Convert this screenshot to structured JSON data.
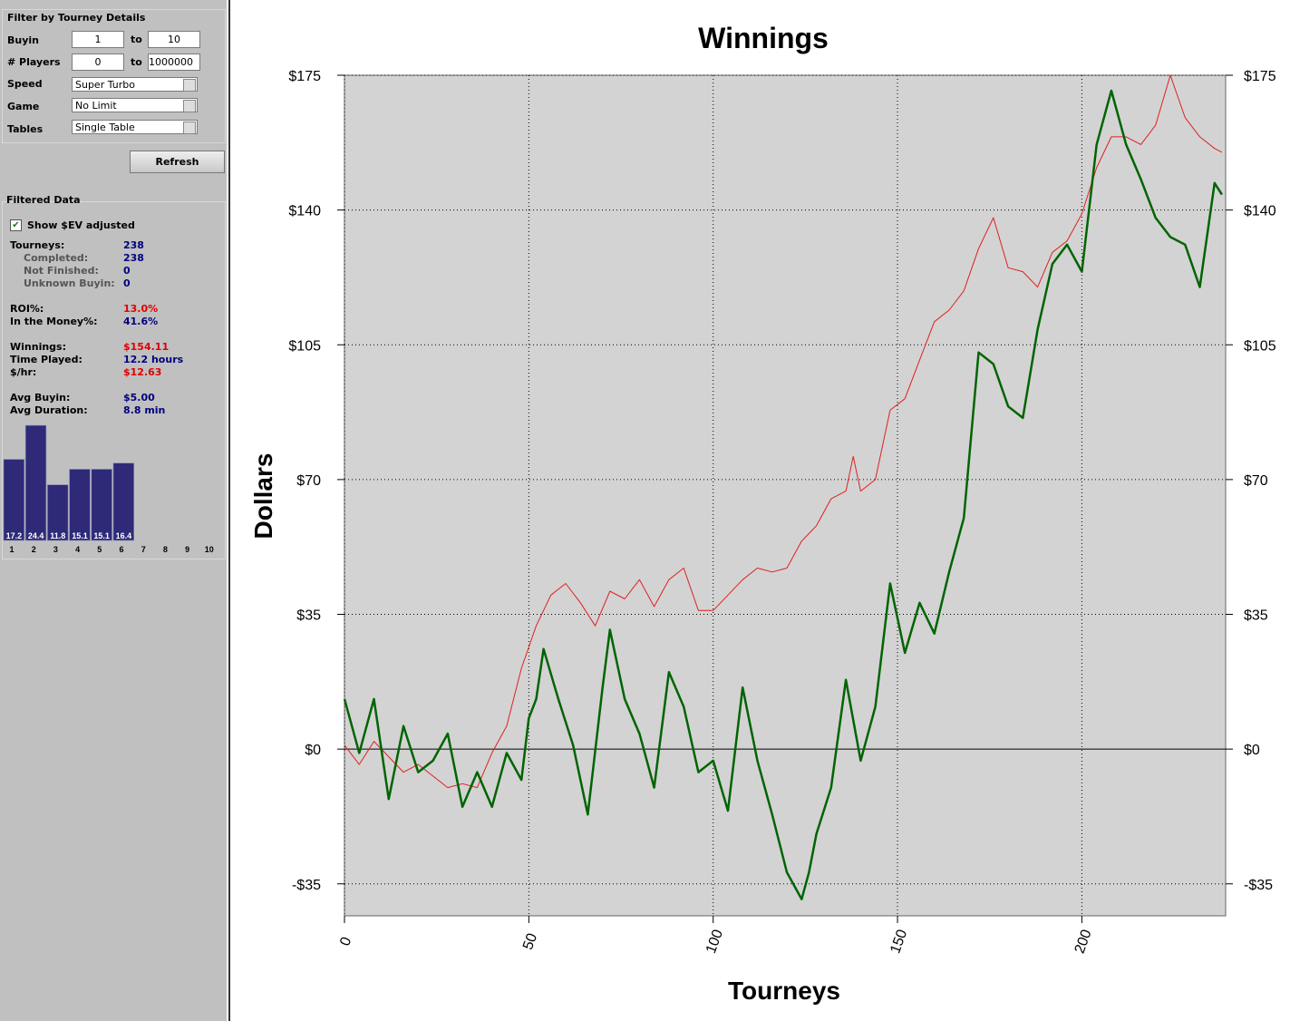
{
  "filter": {
    "title": "Filter by Tourney Details",
    "buyin": {
      "label": "Buyin",
      "min": "1",
      "sep": "to",
      "max": "10"
    },
    "players": {
      "label": "# Players",
      "min": "0",
      "sep": "to",
      "max": "1000000"
    },
    "speed": {
      "label": "Speed",
      "value": "Super Turbo"
    },
    "game": {
      "label": "Game",
      "value": "No Limit"
    },
    "tables": {
      "label": "Tables",
      "value": "Single Table"
    },
    "refresh": "Refresh"
  },
  "filtered": {
    "title": "Filtered Data",
    "ev_checkbox": "Show $EV adjusted",
    "ev_checked": true,
    "groups": [
      [
        {
          "label": "Tourneys:",
          "value": "238"
        },
        {
          "label": "Completed:",
          "value": "238",
          "sub": true
        },
        {
          "label": "Not Finished:",
          "value": "0",
          "sub": true
        },
        {
          "label": "Unknown Buyin:",
          "value": "0",
          "sub": true
        }
      ],
      [
        {
          "label": "ROI%:",
          "value": "13.0%",
          "color": "#e00000"
        },
        {
          "label": "In the Money%:",
          "value": "41.6%"
        }
      ],
      [
        {
          "label": "Winnings:",
          "value": "$154.11",
          "color": "#e00000"
        },
        {
          "label": "Time Played:",
          "value": "12.2 hours"
        },
        {
          "label": "$/hr:",
          "value": "$12.63",
          "color": "#e00000"
        }
      ],
      [
        {
          "label": "Avg Buyin:",
          "value": "$5.00"
        },
        {
          "label": "Avg Duration:",
          "value": "8.8 min"
        }
      ]
    ]
  },
  "histogram": {
    "type": "bar",
    "categories": [
      "1",
      "2",
      "3",
      "4",
      "5",
      "6",
      "7",
      "8",
      "9",
      "10"
    ],
    "values": [
      17.2,
      24.4,
      11.8,
      15.1,
      15.1,
      16.4,
      null,
      null,
      null,
      null
    ],
    "color": "#2e2a78"
  },
  "chart_data": {
    "type": "line",
    "title": "Winnings",
    "x_label": "Tourneys",
    "y_label": "Dollars",
    "xlim": [
      0,
      239
    ],
    "ylim": [
      -43.3,
      175
    ],
    "xticks": [
      0,
      50,
      100,
      150,
      200
    ],
    "yticks": [
      {
        "value": -35,
        "label": "-$35"
      },
      {
        "value": 0,
        "label": "$0"
      },
      {
        "value": 35,
        "label": "$35"
      },
      {
        "value": 70,
        "label": "$70"
      },
      {
        "value": 105,
        "label": "$105"
      },
      {
        "value": 140,
        "label": "$140"
      },
      {
        "value": 175,
        "label": "$175"
      }
    ],
    "grid": true,
    "mirror_y_axis": true,
    "series": [
      {
        "color": "#e02020",
        "width": 1,
        "x": [
          0,
          4,
          8,
          12,
          16,
          20,
          24,
          28,
          32,
          36,
          40,
          44,
          48,
          52,
          56,
          60,
          64,
          68,
          72,
          76,
          80,
          84,
          88,
          92,
          96,
          100,
          104,
          108,
          112,
          116,
          120,
          124,
          128,
          132,
          136,
          138,
          140,
          144,
          148,
          152,
          156,
          160,
          164,
          168,
          172,
          176,
          180,
          184,
          188,
          192,
          196,
          200,
          204,
          208,
          212,
          216,
          220,
          224,
          228,
          232,
          236,
          238
        ],
        "values": [
          1,
          -4,
          2,
          -2,
          -6,
          -4,
          -7,
          -10,
          -9,
          -10,
          -1,
          6,
          21,
          32,
          40,
          43,
          38,
          32,
          41,
          39,
          44,
          37,
          44,
          47,
          36,
          36,
          40,
          44,
          47,
          46,
          47,
          54,
          58,
          65,
          67,
          76,
          67,
          70,
          88,
          91,
          101,
          111,
          114,
          119,
          130,
          138,
          125,
          124,
          120,
          129,
          132,
          139,
          151,
          159,
          159,
          157,
          162,
          175,
          164,
          159,
          156,
          155
        ]
      },
      {
        "color": "#006400",
        "width": 2.5,
        "x": [
          0,
          4,
          8,
          12,
          16,
          20,
          24,
          28,
          32,
          36,
          40,
          44,
          48,
          50,
          52,
          54,
          58,
          62,
          66,
          70,
          72,
          76,
          80,
          84,
          88,
          92,
          96,
          100,
          104,
          108,
          112,
          116,
          120,
          124,
          126,
          128,
          132,
          136,
          140,
          144,
          148,
          152,
          156,
          160,
          164,
          168,
          172,
          176,
          180,
          184,
          188,
          192,
          196,
          200,
          204,
          208,
          212,
          216,
          220,
          224,
          228,
          232,
          236,
          238
        ],
        "values": [
          13,
          -1,
          13,
          -13,
          6,
          -6,
          -3,
          4,
          -15,
          -6,
          -15,
          -1,
          -8,
          8,
          13,
          26,
          13,
          1,
          -17,
          16,
          31,
          13,
          4,
          -10,
          20,
          11,
          -6,
          -3,
          -16,
          16,
          -3,
          -17,
          -32,
          -39,
          -32,
          -22,
          -10,
          18,
          -3,
          11,
          43,
          25,
          38,
          30,
          46,
          60,
          103,
          100,
          89,
          86,
          109,
          126,
          131,
          124,
          157,
          171,
          157,
          148,
          138,
          133,
          131,
          120,
          147,
          144
        ]
      }
    ]
  }
}
